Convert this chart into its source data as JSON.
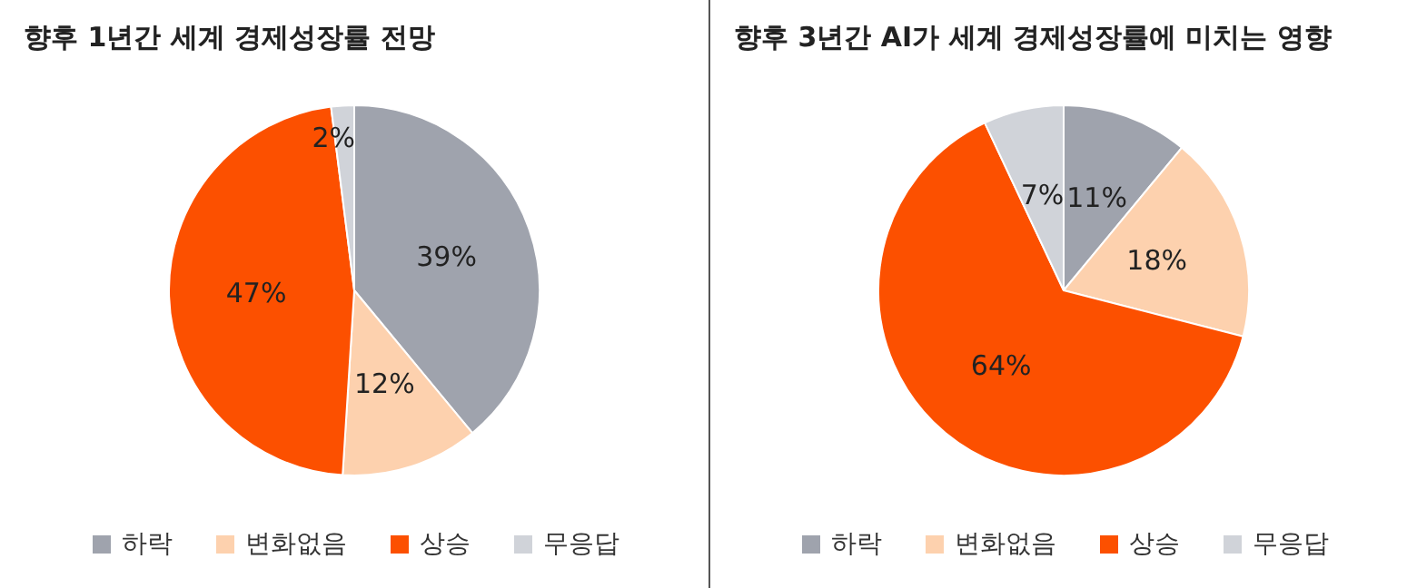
{
  "chart_data": [
    {
      "type": "pie",
      "title": "향후 1년간 세계 경제성장률 전망",
      "categories": [
        "하락",
        "변화없음",
        "상승",
        "무응답"
      ],
      "values": [
        39,
        12,
        47,
        2
      ],
      "value_labels": [
        "39%",
        "12%",
        "47%",
        "2%"
      ],
      "colors": [
        "#9fa3ad",
        "#fdd1ae",
        "#fc5000",
        "#d0d3d9"
      ],
      "legend": "bottom"
    },
    {
      "type": "pie",
      "title": "향후 3년간 AI가 세계 경제성장률에 미치는 영향",
      "categories": [
        "하락",
        "변화없음",
        "상승",
        "무응답"
      ],
      "values": [
        11,
        18,
        64,
        7
      ],
      "value_labels": [
        "11%",
        "18%",
        "64%",
        "7%"
      ],
      "colors": [
        "#9fa3ad",
        "#fdd1ae",
        "#fc5000",
        "#d0d3d9"
      ],
      "legend": "bottom"
    }
  ]
}
